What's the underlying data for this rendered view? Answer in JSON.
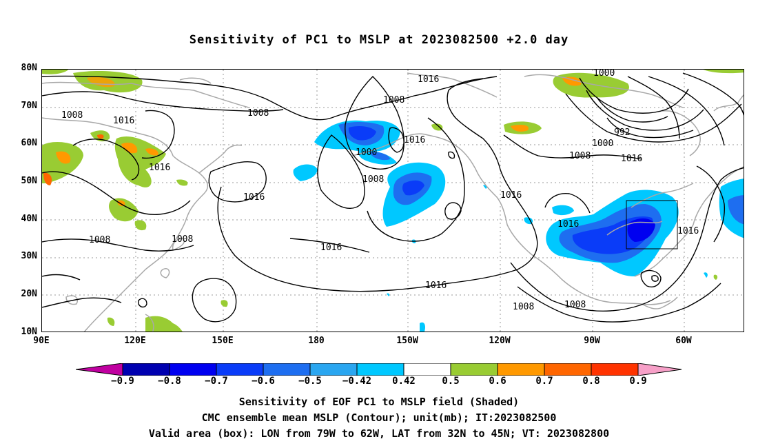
{
  "title": "Sensitivity of PC1 to MSLP at 2023082500 +2.0 day",
  "lat_labels": [
    "80N",
    "70N",
    "60N",
    "50N",
    "40N",
    "30N",
    "20N",
    "10N"
  ],
  "lon_labels": [
    "90E",
    "120E",
    "150E",
    "180",
    "150W",
    "120W",
    "90W",
    "60W"
  ],
  "contour_labels": {
    "c1016a": "1016",
    "c1008a": "1008",
    "c1000a": "1000",
    "c1008b": "1008",
    "c1016b": "1016",
    "c1000b": "1000",
    "c1008c": "1008",
    "c1008d": "1008",
    "c1016c": "1016",
    "c1016d": "1016",
    "c1016e": "1016",
    "c1008e": "1008",
    "c1008f": "1008",
    "c1016f": "1016",
    "c1016g": "1016",
    "c1016h": "1016",
    "c1016i": "1016",
    "c1016j": "1016",
    "c992": "992",
    "c1000c": "1000",
    "c1008g": "1008",
    "c1016k": "1016",
    "c1008h": "1008",
    "c1008i": "1008"
  },
  "colorbar": {
    "labels": [
      "−0.9",
      "−0.8",
      "−0.7",
      "−0.6",
      "−0.5",
      "−0.42",
      "0.42",
      "0.5",
      "0.6",
      "0.7",
      "0.8",
      "0.9"
    ],
    "colors": [
      "#c000a0",
      "#0000b0",
      "#0000f0",
      "#0a3cf8",
      "#1e6ef0",
      "#2aa6f0",
      "#00c8ff",
      "#ffffff",
      "#99cc33",
      "#ff9900",
      "#ff6600",
      "#ff3300",
      "#ff0000",
      "#f7a0c8"
    ]
  },
  "footer": {
    "line1": "Sensitivity of EOF PC1 to MSLP field (Shaded)",
    "line2": "CMC ensemble mean MSLP (Contour); unit(mb); IT:2023082500",
    "line3": "Valid area (box): LON from 79W to 62W, LAT from 32N to 45N; VT: 2023082800"
  }
}
